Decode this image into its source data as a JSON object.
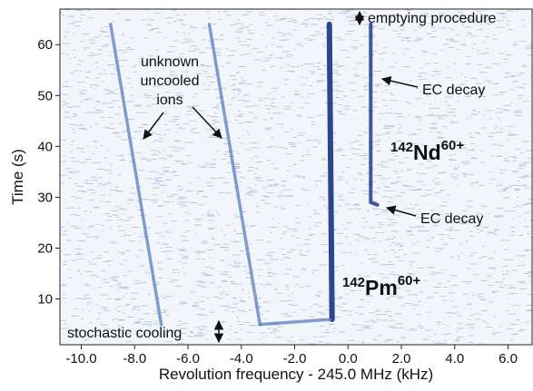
{
  "chart_data": {
    "type": "heatmap",
    "xlabel": "Revolution frequency - 245.0 MHz (kHz)",
    "ylabel": "Time (s)",
    "xlim": [
      -10.8,
      6.9
    ],
    "ylim": [
      1,
      67
    ],
    "x_ticks": [
      -10,
      -8,
      -6,
      -4,
      -2,
      0,
      2,
      4,
      6
    ],
    "x_tick_labels": [
      "-10.0",
      "-8.0",
      "-6.0",
      "-4.0",
      "-2.0",
      "0.0",
      "2.0",
      "4.0",
      "6.0"
    ],
    "y_ticks": [
      10,
      20,
      30,
      40,
      50,
      60
    ],
    "y_tick_labels": [
      "10",
      "20",
      "30",
      "40",
      "50",
      "60"
    ],
    "colors": {
      "background": "#f2f5fa",
      "noise": "#6e8fc4",
      "trace": "#1f3c88",
      "faint_trace": "#5a7cbf"
    },
    "traces": [
      {
        "id": "uncooled-1",
        "points": [
          [
            -8.9,
            64
          ],
          [
            -7.0,
            5
          ]
        ],
        "intensity": "faint"
      },
      {
        "id": "uncooled-2",
        "points": [
          [
            -5.2,
            64
          ],
          [
            -3.3,
            5
          ]
        ],
        "intensity": "faint"
      },
      {
        "id": "pm142",
        "points": [
          [
            -0.7,
            64
          ],
          [
            -0.6,
            6
          ]
        ],
        "intensity": "strong"
      },
      {
        "id": "cooled-line",
        "points": [
          [
            -3.3,
            5
          ],
          [
            -0.6,
            6
          ]
        ],
        "intensity": "faint"
      },
      {
        "id": "nd142",
        "points": [
          [
            0.85,
            64
          ],
          [
            0.85,
            29
          ],
          [
            1.1,
            28.5
          ]
        ],
        "intensity": "medium"
      }
    ],
    "annotations": {
      "emptying": "emptying procedure",
      "stochastic": "stochastic cooling",
      "unknown_line1": "unknown",
      "unknown_line2": "uncooled",
      "unknown_line3": "ions",
      "ec_upper": "EC decay",
      "ec_lower": "EC decay",
      "nd_mass": "142",
      "nd_symbol": "Nd",
      "nd_charge": "60+",
      "pm_mass": "142",
      "pm_symbol": "Pm",
      "pm_charge": "60+"
    }
  }
}
